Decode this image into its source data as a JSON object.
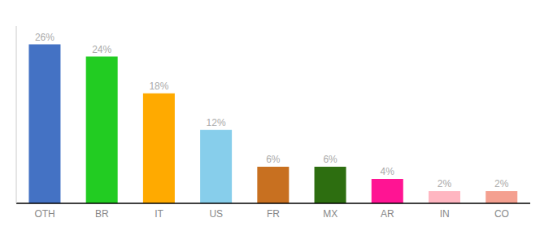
{
  "chart_data": {
    "type": "bar",
    "categories": [
      "OTH",
      "BR",
      "IT",
      "US",
      "FR",
      "MX",
      "AR",
      "IN",
      "CO"
    ],
    "values": [
      26,
      24,
      18,
      12,
      6,
      6,
      4,
      2,
      2
    ],
    "value_labels": [
      "26%",
      "24%",
      "18%",
      "12%",
      "6%",
      "6%",
      "4%",
      "2%",
      "2%"
    ],
    "colors": [
      "#4472c4",
      "#22cc22",
      "#ffaa00",
      "#87ceeb",
      "#c87020",
      "#2d6e10",
      "#ff1493",
      "#ffb6c1",
      "#f4a090"
    ],
    "ylim": [
      0,
      29
    ],
    "data_labels": true,
    "tick_labels": "x",
    "grid": false
  }
}
